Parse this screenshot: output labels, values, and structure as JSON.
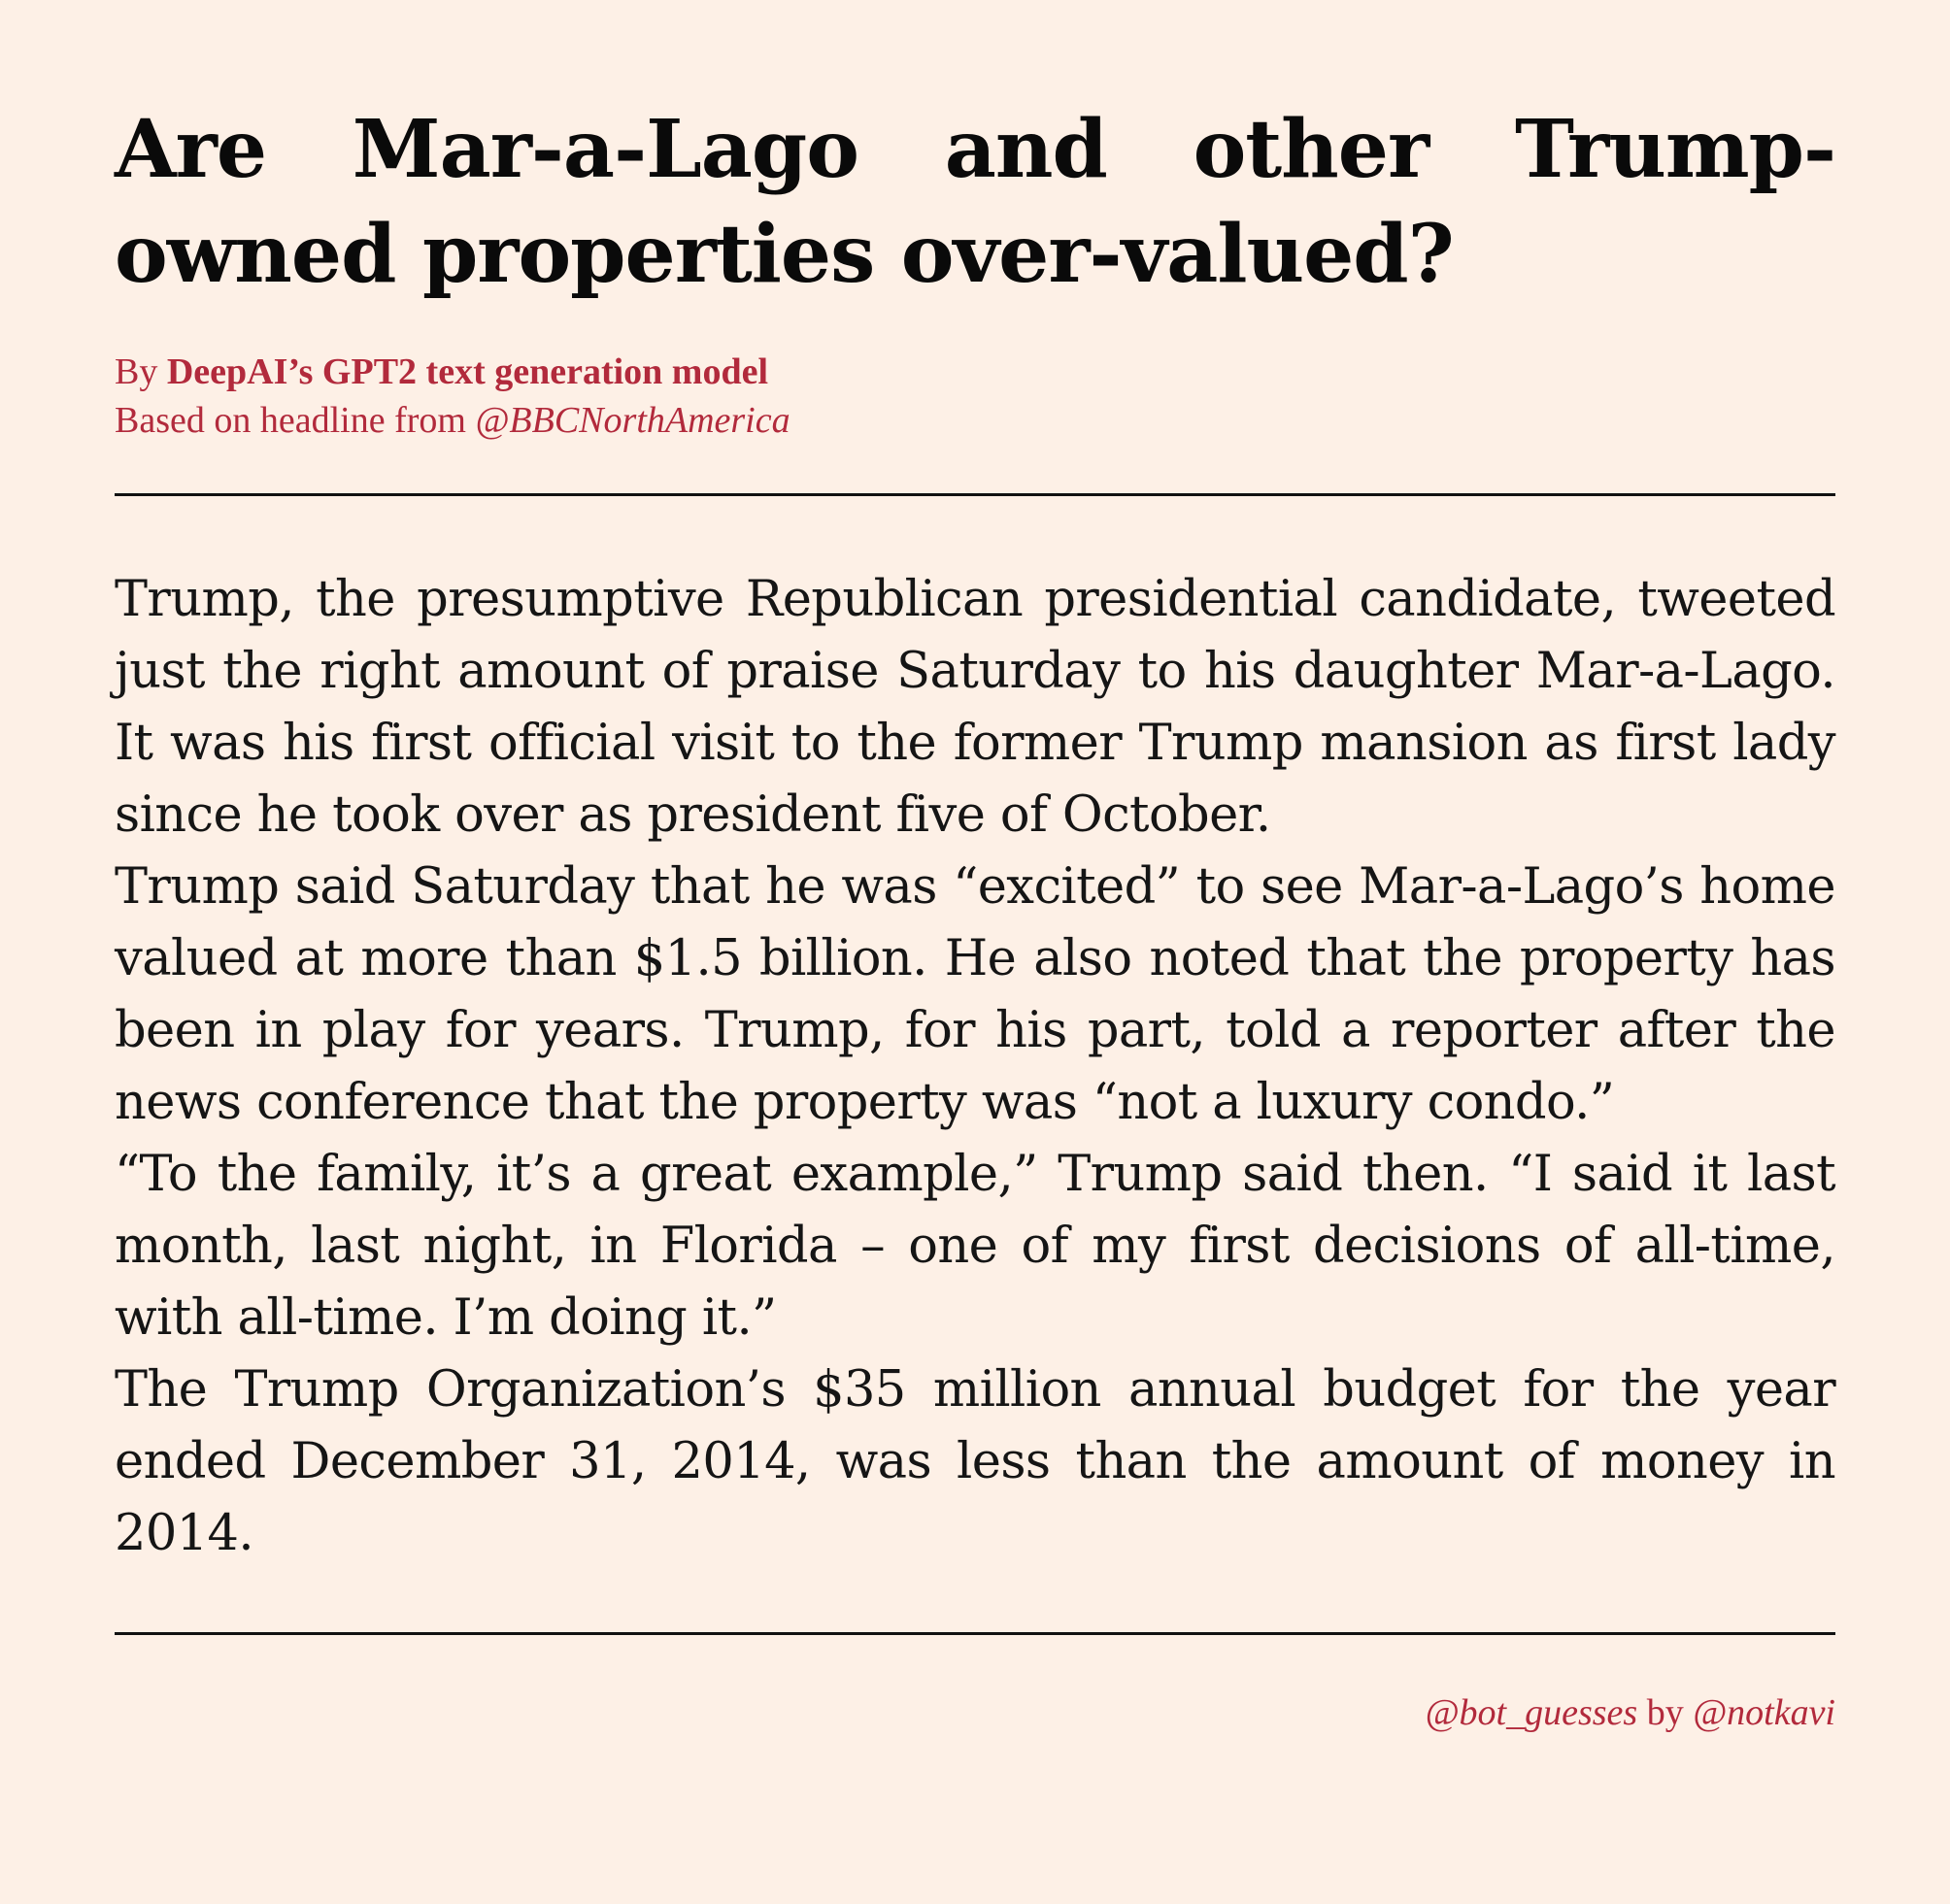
{
  "article": {
    "headline": "Are Mar-a-Lago and other Trump-owned properties over-valued?",
    "byline": {
      "prefix": "By ",
      "author": "DeepAI’s GPT2 text generation model",
      "based_on_prefix": "Based on headline from ",
      "source_handle": "@BBCNorthAmerica"
    },
    "paragraphs": [
      "Trump, the presumptive Republican presidential candidate, tweeted just the right amount of praise Saturday to his daughter Mar-a-Lago. It was his first official visit to the former Trump mansion as first lady since he took over as president five of October.",
      "Trump said Saturday that he was “excited” to see Mar-a-Lago’s home valued at more than $1.5 billion. He also noted that the property has been in play for years. Trump, for his part, told a reporter after the news conference that the property was “not a luxury condo.”",
      "“To the family, it’s a great example,” Trump said then. “I said it last month, last night, in Florida – one of my first decisions of all-time, with all-time. I’m doing it.”",
      "The Trump Organization’s $35 million annual budget for the year ended December 31, 2014, was less than the amount of money in 2014."
    ]
  },
  "footer": {
    "bot_handle": "@bot_guesses",
    "by_text": " by ",
    "creator_handle": "@notkavi"
  },
  "colors": {
    "background": "#fdf0e6",
    "accent": "#b22a3c",
    "text": "#111111"
  }
}
